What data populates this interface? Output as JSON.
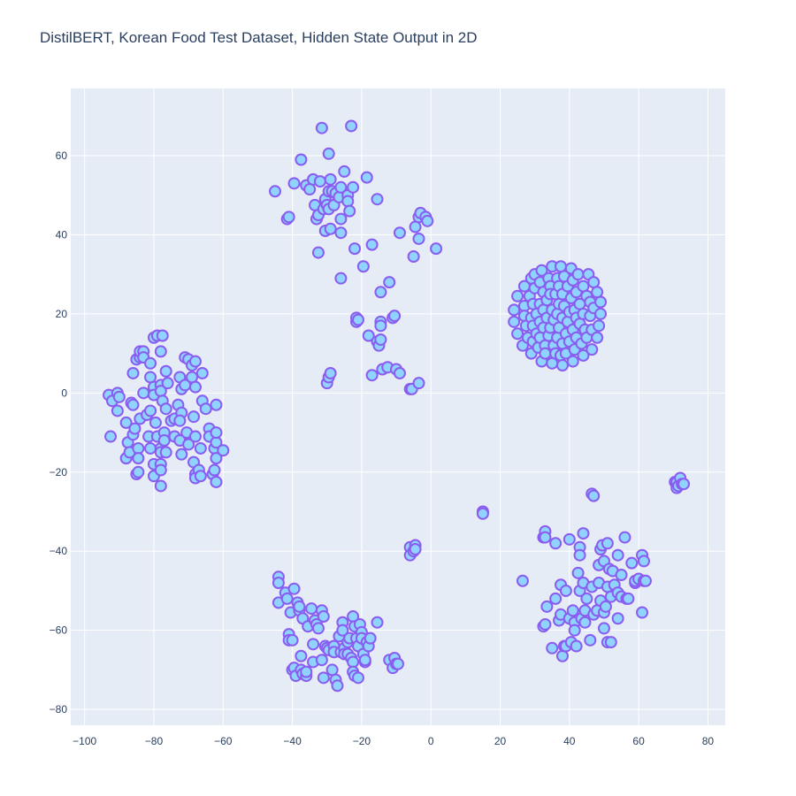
{
  "chart_data": {
    "type": "scatter",
    "title": "DistilBERT, Korean Food Test Dataset, Hidden State Output in 2D",
    "xlabel": "",
    "ylabel": "",
    "xlim": [
      -104,
      85
    ],
    "ylim": [
      -84,
      77
    ],
    "x_ticks": [
      -100,
      -80,
      -60,
      -40,
      -20,
      0,
      20,
      40,
      60,
      80
    ],
    "y_ticks": [
      -80,
      -60,
      -40,
      -20,
      0,
      20,
      40,
      60
    ],
    "grid": true,
    "legend": "none",
    "colors": {
      "plot_background": "#e5ecf6",
      "grid": "#ffffff",
      "marker_fill": "#8fd3fe",
      "marker_outline": "#8a5cf0",
      "text": "#2a3f5f"
    },
    "points": [
      [
        -93,
        -0.5
      ],
      [
        -92,
        -2
      ],
      [
        -90.5,
        0
      ],
      [
        -90,
        -1
      ],
      [
        -90.5,
        -4.5
      ],
      [
        -92.5,
        -11
      ],
      [
        -88,
        -7.5
      ],
      [
        -87.5,
        -12.5
      ],
      [
        -88,
        -16.5
      ],
      [
        -87,
        -15
      ],
      [
        -86.5,
        -2.5
      ],
      [
        -86,
        -3
      ],
      [
        -86,
        -10.5
      ],
      [
        -85.5,
        -9
      ],
      [
        -86,
        5
      ],
      [
        -85,
        8.5
      ],
      [
        -84,
        9
      ],
      [
        -84,
        10.5
      ],
      [
        -83,
        10.5
      ],
      [
        -83,
        9
      ],
      [
        -83,
        0
      ],
      [
        -84,
        -6.5
      ],
      [
        -84.5,
        -14
      ],
      [
        -84.5,
        -16.5
      ],
      [
        -85,
        -20.5
      ],
      [
        -84.5,
        -20
      ],
      [
        -82,
        -5.5
      ],
      [
        -81,
        -4.5
      ],
      [
        -81.5,
        -11
      ],
      [
        -81,
        -14
      ],
      [
        -80,
        -18
      ],
      [
        -80,
        -21
      ],
      [
        -81,
        7.5
      ],
      [
        -81,
        4
      ],
      [
        -80,
        1.5
      ],
      [
        -80,
        -0.5
      ],
      [
        -79.5,
        -7.5
      ],
      [
        -79,
        -11
      ],
      [
        -80,
        14
      ],
      [
        -79,
        14.5
      ],
      [
        -77.5,
        14.5
      ],
      [
        -78,
        10.5
      ],
      [
        -78,
        2
      ],
      [
        -78,
        0.5
      ],
      [
        -77.5,
        -2
      ],
      [
        -76.5,
        -4
      ],
      [
        -77,
        -10
      ],
      [
        -78,
        -14
      ],
      [
        -78,
        -15
      ],
      [
        -78,
        -18
      ],
      [
        -78,
        -19.5
      ],
      [
        -78,
        -23.5
      ],
      [
        -77,
        -12
      ],
      [
        -76.5,
        -15
      ],
      [
        -76.5,
        5.5
      ],
      [
        -76,
        2.5
      ],
      [
        -75,
        -7
      ],
      [
        -74,
        -11
      ],
      [
        -74,
        -6.5
      ],
      [
        -73,
        -3
      ],
      [
        -72,
        -5
      ],
      [
        -72.5,
        -7
      ],
      [
        -72.5,
        -12
      ],
      [
        -72,
        -15.5
      ],
      [
        -72,
        1
      ],
      [
        -72.5,
        4
      ],
      [
        -71,
        2
      ],
      [
        -71,
        9
      ],
      [
        -70,
        8.5
      ],
      [
        -70.5,
        -10
      ],
      [
        -70,
        -13
      ],
      [
        -69,
        7
      ],
      [
        -68,
        8
      ],
      [
        -69,
        4
      ],
      [
        -68,
        1.5
      ],
      [
        -68.5,
        -6
      ],
      [
        -68,
        -11
      ],
      [
        -68.5,
        -17.5
      ],
      [
        -68,
        -20.5
      ],
      [
        -68,
        -21.5
      ],
      [
        -67,
        -19.5
      ],
      [
        -66.5,
        -21
      ],
      [
        -66.5,
        -14
      ],
      [
        -66,
        5
      ],
      [
        -66,
        -2
      ],
      [
        -65,
        -4
      ],
      [
        -64,
        -9
      ],
      [
        -64,
        -11
      ],
      [
        -63,
        -20.5
      ],
      [
        -62.5,
        -19.5
      ],
      [
        -62.5,
        -14
      ],
      [
        -62,
        -12.5
      ],
      [
        -62,
        -10
      ],
      [
        -62,
        -3
      ],
      [
        -62,
        -16.5
      ],
      [
        -62,
        -22.5
      ],
      [
        -60,
        -14.5
      ],
      [
        -45,
        51
      ],
      [
        -41.5,
        44
      ],
      [
        -41,
        44.5
      ],
      [
        -39.5,
        53
      ],
      [
        -37.5,
        59
      ],
      [
        -36,
        52.5
      ],
      [
        -35,
        51.5
      ],
      [
        -34,
        54
      ],
      [
        -33.5,
        47.5
      ],
      [
        -33,
        44
      ],
      [
        -32.5,
        45
      ],
      [
        -32,
        53.5
      ],
      [
        -31.5,
        67
      ],
      [
        -31,
        46.5
      ],
      [
        -30.5,
        49
      ],
      [
        -30.5,
        41
      ],
      [
        -30,
        47.5
      ],
      [
        -29.5,
        51
      ],
      [
        -29,
        54
      ],
      [
        -29.5,
        46.5
      ],
      [
        -29,
        41.5
      ],
      [
        -28.5,
        51
      ],
      [
        -28,
        47.5
      ],
      [
        -27.5,
        50.5
      ],
      [
        -26.5,
        49.5
      ],
      [
        -26,
        44
      ],
      [
        -26,
        40.5
      ],
      [
        -26,
        52
      ],
      [
        -25,
        56
      ],
      [
        -24,
        50
      ],
      [
        -24,
        48.5
      ],
      [
        -23.5,
        46
      ],
      [
        -23,
        67.5
      ],
      [
        -22.5,
        52
      ],
      [
        -22,
        36.5
      ],
      [
        -29.5,
        60.5
      ],
      [
        -30,
        2.5
      ],
      [
        -29.5,
        4
      ],
      [
        -29,
        5
      ],
      [
        -32.5,
        35.5
      ],
      [
        -26,
        29
      ],
      [
        -21.5,
        18
      ],
      [
        -21.5,
        19
      ],
      [
        -21,
        18.5
      ],
      [
        -19.5,
        32
      ],
      [
        -18.5,
        54.5
      ],
      [
        -18,
        14.5
      ],
      [
        -17,
        37.5
      ],
      [
        -17,
        4.5
      ],
      [
        -15.5,
        49
      ],
      [
        -15.5,
        13
      ],
      [
        -15,
        12
      ],
      [
        -14.5,
        13.5
      ],
      [
        -14.5,
        18
      ],
      [
        -14.5,
        17
      ],
      [
        -14.5,
        25.5
      ],
      [
        -14,
        6
      ],
      [
        -12.5,
        6.5
      ],
      [
        -12,
        28
      ],
      [
        -11,
        19
      ],
      [
        -10.5,
        19.5
      ],
      [
        -10,
        6
      ],
      [
        -9,
        40.5
      ],
      [
        -9,
        5
      ],
      [
        -6,
        1
      ],
      [
        -5.5,
        1
      ],
      [
        -5,
        34.5
      ],
      [
        -4.5,
        42
      ],
      [
        -3.5,
        39
      ],
      [
        -3.5,
        44.5
      ],
      [
        -3,
        45.5
      ],
      [
        -3.5,
        2.5
      ],
      [
        -1.5,
        44.5
      ],
      [
        -1,
        43.5
      ],
      [
        1.5,
        36.5
      ],
      [
        24,
        21
      ],
      [
        24,
        18
      ],
      [
        25,
        24.5
      ],
      [
        25,
        15
      ],
      [
        26.5,
        12
      ],
      [
        27,
        27
      ],
      [
        27,
        22
      ],
      [
        27,
        19.5
      ],
      [
        27.5,
        17
      ],
      [
        28,
        14
      ],
      [
        28.5,
        24.5
      ],
      [
        29,
        29
      ],
      [
        29,
        10
      ],
      [
        29,
        19
      ],
      [
        29.5,
        22.5
      ],
      [
        29.5,
        17
      ],
      [
        29.5,
        13
      ],
      [
        30,
        30
      ],
      [
        30,
        26.5
      ],
      [
        30.5,
        20
      ],
      [
        30.5,
        15
      ],
      [
        31,
        11.5
      ],
      [
        31.5,
        28
      ],
      [
        31.5,
        22.5
      ],
      [
        31.5,
        18
      ],
      [
        31.5,
        14
      ],
      [
        32,
        8
      ],
      [
        32,
        31
      ],
      [
        32.5,
        25.5
      ],
      [
        32.5,
        21
      ],
      [
        32.5,
        16.5
      ],
      [
        33,
        12
      ],
      [
        33,
        10
      ],
      [
        33.5,
        23.5
      ],
      [
        33.5,
        19
      ],
      [
        34,
        14.5
      ],
      [
        34,
        29
      ],
      [
        34.5,
        27
      ],
      [
        34.5,
        25
      ],
      [
        34.5,
        16.5
      ],
      [
        35,
        32
      ],
      [
        35,
        7.5
      ],
      [
        35,
        21
      ],
      [
        35.5,
        18.5
      ],
      [
        35.5,
        12
      ],
      [
        36,
        25
      ],
      [
        36,
        10
      ],
      [
        36.5,
        29
      ],
      [
        36.5,
        14
      ],
      [
        36.5,
        20
      ],
      [
        37,
        22.5
      ],
      [
        37,
        27
      ],
      [
        37,
        16.5
      ],
      [
        37.5,
        32
      ],
      [
        37.5,
        9.5
      ],
      [
        38,
        7
      ],
      [
        38,
        12.5
      ],
      [
        38,
        19
      ],
      [
        38,
        25
      ],
      [
        38.5,
        29.5
      ],
      [
        38.5,
        22
      ],
      [
        39,
        15
      ],
      [
        39,
        10
      ],
      [
        39.5,
        27
      ],
      [
        39.5,
        18
      ],
      [
        40,
        13
      ],
      [
        40,
        20.5
      ],
      [
        40.5,
        31.5
      ],
      [
        40.5,
        24
      ],
      [
        41,
        8
      ],
      [
        41,
        28.5
      ],
      [
        41,
        16
      ],
      [
        41.5,
        11
      ],
      [
        41.5,
        21
      ],
      [
        42,
        25.5
      ],
      [
        42,
        14
      ],
      [
        42,
        19
      ],
      [
        42.5,
        30
      ],
      [
        43,
        17.5
      ],
      [
        43,
        22.5
      ],
      [
        43.5,
        12.5
      ],
      [
        44,
        27
      ],
      [
        44,
        9.5
      ],
      [
        44,
        20
      ],
      [
        44.5,
        16
      ],
      [
        45,
        24.5
      ],
      [
        45,
        14
      ],
      [
        45.5,
        30
      ],
      [
        46,
        19.5
      ],
      [
        46,
        23
      ],
      [
        46.5,
        11
      ],
      [
        46.5,
        16
      ],
      [
        47,
        28
      ],
      [
        47,
        21.5
      ],
      [
        48,
        25.5
      ],
      [
        48,
        14
      ],
      [
        48.5,
        17
      ],
      [
        49,
        23
      ],
      [
        49,
        20
      ],
      [
        -44,
        -46.5
      ],
      [
        -44,
        -48
      ],
      [
        -44,
        -53
      ],
      [
        -42,
        -50.5
      ],
      [
        -41.5,
        -52
      ],
      [
        -41,
        -61
      ],
      [
        -41,
        -62.5
      ],
      [
        -40.5,
        -55.5
      ],
      [
        -40,
        -70
      ],
      [
        -40,
        -62.5
      ],
      [
        -39.5,
        -69.5
      ],
      [
        -39.5,
        -49.5
      ],
      [
        -39,
        -71.5
      ],
      [
        -38.5,
        -53
      ],
      [
        -38,
        -55
      ],
      [
        -38,
        -54
      ],
      [
        -37.5,
        -70
      ],
      [
        -37.5,
        -66.5
      ],
      [
        -37,
        -71
      ],
      [
        -37,
        -57
      ],
      [
        -36,
        -71.5
      ],
      [
        -36,
        -70.5
      ],
      [
        -35.5,
        -59
      ],
      [
        -34.5,
        -54.5
      ],
      [
        -34,
        -63.5
      ],
      [
        -34,
        -68
      ],
      [
        -33.5,
        -57.5
      ],
      [
        -33,
        -58.5
      ],
      [
        -32.5,
        -59.5
      ],
      [
        -31.5,
        -67.5
      ],
      [
        -31.5,
        -55
      ],
      [
        -31,
        -72
      ],
      [
        -31,
        -56.5
      ],
      [
        -30.5,
        -64
      ],
      [
        -30,
        -64.5
      ],
      [
        -29.5,
        -65
      ],
      [
        -28.5,
        -70
      ],
      [
        -28,
        -64
      ],
      [
        -28,
        -65.5
      ],
      [
        -27.5,
        -72.5
      ],
      [
        -27,
        -74
      ],
      [
        -26.5,
        -61.5
      ],
      [
        -26,
        -65.5
      ],
      [
        -25.5,
        -58
      ],
      [
        -25.5,
        -60
      ],
      [
        -25,
        -64.5
      ],
      [
        -25,
        -66
      ],
      [
        -24,
        -63
      ],
      [
        -24,
        -66
      ],
      [
        -23.5,
        -62
      ],
      [
        -23,
        -67
      ],
      [
        -22.5,
        -56.5
      ],
      [
        -22.5,
        -68
      ],
      [
        -22.5,
        -70.5
      ],
      [
        -22,
        -59
      ],
      [
        -22,
        -71.5
      ],
      [
        -21.5,
        -62
      ],
      [
        -21,
        -64
      ],
      [
        -21,
        -72
      ],
      [
        -20.5,
        -58.5
      ],
      [
        -20,
        -60.5
      ],
      [
        -20,
        -62
      ],
      [
        -19.5,
        -66
      ],
      [
        -19,
        -68
      ],
      [
        -19,
        -67.5
      ],
      [
        -18.5,
        -63
      ],
      [
        -18,
        -64
      ],
      [
        -17.5,
        -62
      ],
      [
        -15.5,
        -58
      ],
      [
        -12,
        -67.5
      ],
      [
        -11,
        -69.5
      ],
      [
        -10.5,
        -67
      ],
      [
        -10,
        -68.5
      ],
      [
        -9.5,
        -68.5
      ],
      [
        -6,
        -39
      ],
      [
        -6,
        -41
      ],
      [
        -5,
        -40
      ],
      [
        -4.5,
        -38.5
      ],
      [
        -4.5,
        -39.5
      ],
      [
        15,
        -30
      ],
      [
        15,
        -30.5
      ],
      [
        26.5,
        -47.5
      ],
      [
        32.5,
        -36.5
      ],
      [
        33,
        -35
      ],
      [
        33,
        -36.5
      ],
      [
        32.5,
        -59
      ],
      [
        33,
        -58.5
      ],
      [
        33.5,
        -54
      ],
      [
        35,
        -64.5
      ],
      [
        36,
        -52
      ],
      [
        36,
        -38
      ],
      [
        37,
        -57.5
      ],
      [
        37.5,
        -48.5
      ],
      [
        37.5,
        -56
      ],
      [
        38,
        -66.5
      ],
      [
        38.5,
        -64
      ],
      [
        39,
        -64
      ],
      [
        39,
        -50
      ],
      [
        40,
        -37
      ],
      [
        40,
        -57
      ],
      [
        40.5,
        -63
      ],
      [
        41,
        -55
      ],
      [
        41.5,
        -58
      ],
      [
        41.5,
        -60
      ],
      [
        42,
        -64
      ],
      [
        42.5,
        -45.5
      ],
      [
        43,
        -39
      ],
      [
        43,
        -41
      ],
      [
        43,
        -50
      ],
      [
        43.5,
        -57
      ],
      [
        44,
        -48
      ],
      [
        44,
        -35.5
      ],
      [
        44.5,
        -55
      ],
      [
        44.5,
        -58
      ],
      [
        45,
        -52
      ],
      [
        46,
        -62.5
      ],
      [
        46.5,
        -25.5
      ],
      [
        46.5,
        -49
      ],
      [
        47,
        -26
      ],
      [
        47,
        -56
      ],
      [
        48,
        -55
      ],
      [
        48.5,
        -48
      ],
      [
        48.5,
        -43.5
      ],
      [
        49,
        -52.5
      ],
      [
        49,
        -39.5
      ],
      [
        49.5,
        -38.5
      ],
      [
        50,
        -42.5
      ],
      [
        50,
        -55.5
      ],
      [
        50,
        -59.5
      ],
      [
        50.5,
        -54
      ],
      [
        51,
        -63
      ],
      [
        51,
        -38
      ],
      [
        51,
        -49
      ],
      [
        51.5,
        -44.5
      ],
      [
        52,
        -51.5
      ],
      [
        52,
        -63
      ],
      [
        52.5,
        -45
      ],
      [
        53,
        -48.5
      ],
      [
        54,
        -50.5
      ],
      [
        54,
        -57
      ],
      [
        54,
        -41
      ],
      [
        55,
        -46
      ],
      [
        55,
        -51.5
      ],
      [
        56,
        -36.5
      ],
      [
        56.5,
        -52
      ],
      [
        57,
        -52
      ],
      [
        58,
        -43
      ],
      [
        59,
        -48
      ],
      [
        59,
        -47.5
      ],
      [
        60,
        -47
      ],
      [
        61,
        -55.5
      ],
      [
        61,
        -41
      ],
      [
        61.5,
        -47.5
      ],
      [
        61.5,
        -42.5
      ],
      [
        62,
        -47.5
      ],
      [
        70.5,
        -22.5
      ],
      [
        71,
        -22.5
      ],
      [
        71,
        -24
      ],
      [
        71.5,
        -23.5
      ],
      [
        72,
        -21.5
      ],
      [
        72.5,
        -23
      ],
      [
        73,
        -23
      ]
    ]
  }
}
